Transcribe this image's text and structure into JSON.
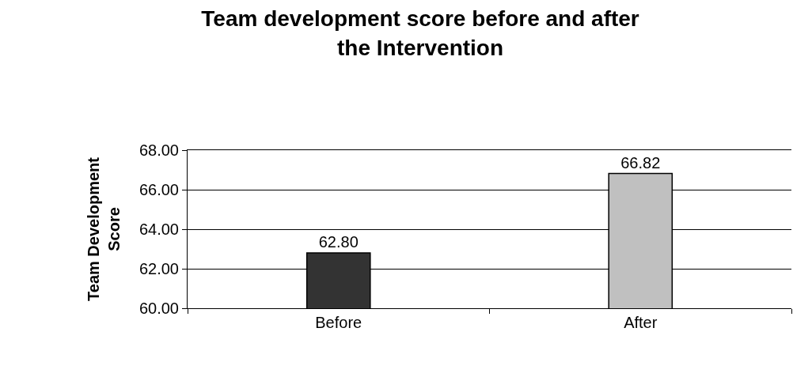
{
  "chart_data": {
    "type": "bar",
    "title": "Team development score before and after the Intervention",
    "ylabel": "Team Development Score",
    "categories": [
      "Before",
      "After"
    ],
    "values": [
      62.8,
      66.82
    ],
    "colors": [
      "#333333",
      "#c0c0c0"
    ],
    "value_labels": [
      "62.80",
      "66.82"
    ],
    "ylim": [
      60,
      68
    ],
    "yticks": [
      {
        "value": 60,
        "label": "60.00"
      },
      {
        "value": 62,
        "label": "62.00"
      },
      {
        "value": 64,
        "label": "64.00"
      },
      {
        "value": 66,
        "label": "66.00"
      },
      {
        "value": 68,
        "label": "68.00"
      }
    ],
    "grid": "y"
  }
}
